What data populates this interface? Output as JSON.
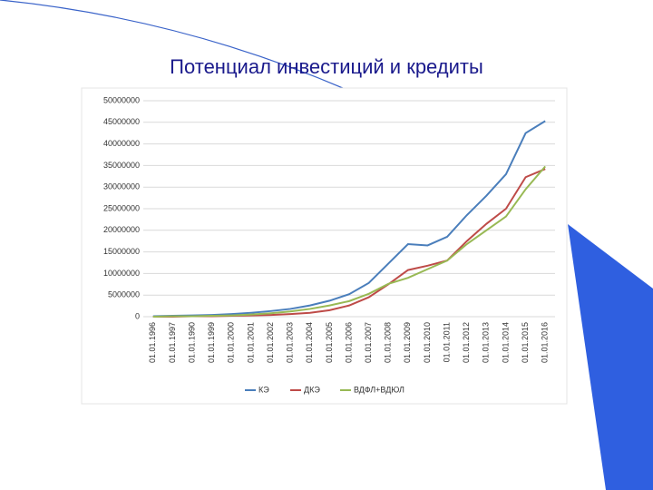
{
  "chart_data": {
    "type": "line",
    "title": "Потенциал инвестиций и кредиты",
    "categories": [
      "01.01.1996",
      "01.01.1997",
      "01.01.1990",
      "01.01.1999",
      "01.01.2000",
      "01.01.2001",
      "01.01.2002",
      "01.01.2003",
      "01.01.2004",
      "01.01.2005",
      "01.01.2006",
      "01.01.2007",
      "01.01.2008",
      "01.01.2009",
      "01.01.2010",
      "01.01.2011",
      "01.01.2012",
      "01.01.2013",
      "01.01.2014",
      "01.01.2015",
      "01.01.2016"
    ],
    "series": [
      {
        "name": "КЭ",
        "color": "#4a7ebb",
        "values": [
          100000,
          200000,
          300000,
          400000,
          600000,
          900000,
          1300000,
          1800000,
          2600000,
          3700000,
          5200000,
          7800000,
          12300000,
          16800000,
          16500000,
          18500000,
          23500000,
          28000000,
          33000000,
          42500000,
          45300000
        ]
      },
      {
        "name": "ДКЭ",
        "color": "#be4b48",
        "values": [
          0,
          0,
          100000,
          100000,
          200000,
          300000,
          400000,
          600000,
          900000,
          1500000,
          2600000,
          4500000,
          7500000,
          10800000,
          11800000,
          13000000,
          17500000,
          21500000,
          25000000,
          32300000,
          34200000
        ]
      },
      {
        "name": "ВДФЛ+ВДЮЛ",
        "color": "#98b954",
        "values": [
          0,
          100000,
          100000,
          200000,
          300000,
          500000,
          800000,
          1200000,
          1800000,
          2600000,
          3600000,
          5300000,
          7600000,
          9000000,
          11000000,
          13000000,
          16800000,
          20000000,
          23200000,
          29500000,
          34800000
        ]
      }
    ],
    "ylim": [
      0,
      50000000
    ],
    "yticks": [
      0,
      5000000,
      10000000,
      15000000,
      20000000,
      25000000,
      30000000,
      35000000,
      40000000,
      45000000,
      50000000
    ],
    "grid": true
  }
}
